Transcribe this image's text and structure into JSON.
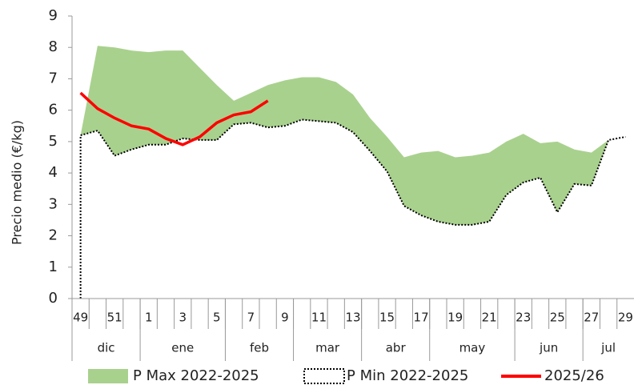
{
  "chart_data": {
    "type": "area-range",
    "y_label": "Precio medio (€/kg)",
    "categories": [
      "49",
      null,
      "51",
      null,
      "1",
      null,
      "3",
      null,
      "5",
      null,
      "7",
      null,
      "9",
      null,
      "11",
      null,
      "13",
      null,
      "15",
      null,
      "17",
      null,
      "19",
      null,
      "21",
      null,
      "23",
      null,
      "25",
      null,
      "27",
      null,
      "29"
    ],
    "months": [
      {
        "label": "dic",
        "span": 4
      },
      {
        "label": "ene",
        "span": 5
      },
      {
        "label": "feb",
        "span": 4
      },
      {
        "label": "mar",
        "span": 4
      },
      {
        "label": "abr",
        "span": 4
      },
      {
        "label": "may",
        "span": 5
      },
      {
        "label": "jun",
        "span": 4
      },
      {
        "label": "jul",
        "span": 3
      }
    ],
    "series": [
      {
        "name": "P Max 2022-2025",
        "color": "#a9d18e",
        "values": [
          5.2,
          8.05,
          8.0,
          7.9,
          7.85,
          7.9,
          7.9,
          7.35,
          6.8,
          6.3,
          6.55,
          6.8,
          6.95,
          7.05,
          7.05,
          6.9,
          6.5,
          5.75,
          5.15,
          4.5,
          4.65,
          4.7,
          4.5,
          4.55,
          4.65,
          5.0,
          5.25,
          4.95,
          5.0,
          4.75,
          4.65,
          5.05,
          5.15
        ]
      },
      {
        "name": "P Min 2022-2025",
        "color": "#000000",
        "values": [
          5.2,
          5.35,
          4.55,
          4.75,
          4.9,
          4.9,
          5.1,
          5.05,
          5.05,
          5.55,
          5.6,
          5.45,
          5.5,
          5.7,
          5.65,
          5.6,
          5.3,
          4.7,
          4.05,
          2.95,
          2.65,
          2.45,
          2.35,
          2.35,
          2.45,
          3.3,
          3.7,
          3.85,
          2.75,
          3.65,
          3.6,
          5.05,
          5.15
        ]
      },
      {
        "name": "2025/26",
        "color": "#ff0000",
        "values": [
          6.55,
          6.05,
          5.75,
          5.5,
          5.4,
          5.1,
          4.9,
          5.15,
          5.6,
          5.85,
          5.95,
          6.3,
          null,
          null,
          null,
          null,
          null,
          null,
          null,
          null,
          null,
          null,
          null,
          null,
          null,
          null,
          null,
          null,
          null,
          null,
          null,
          null,
          null
        ]
      }
    ],
    "ylim": [
      0,
      9
    ],
    "yticks": [
      0,
      1,
      2,
      3,
      4,
      5,
      6,
      7,
      8,
      9
    ],
    "grid": false
  }
}
